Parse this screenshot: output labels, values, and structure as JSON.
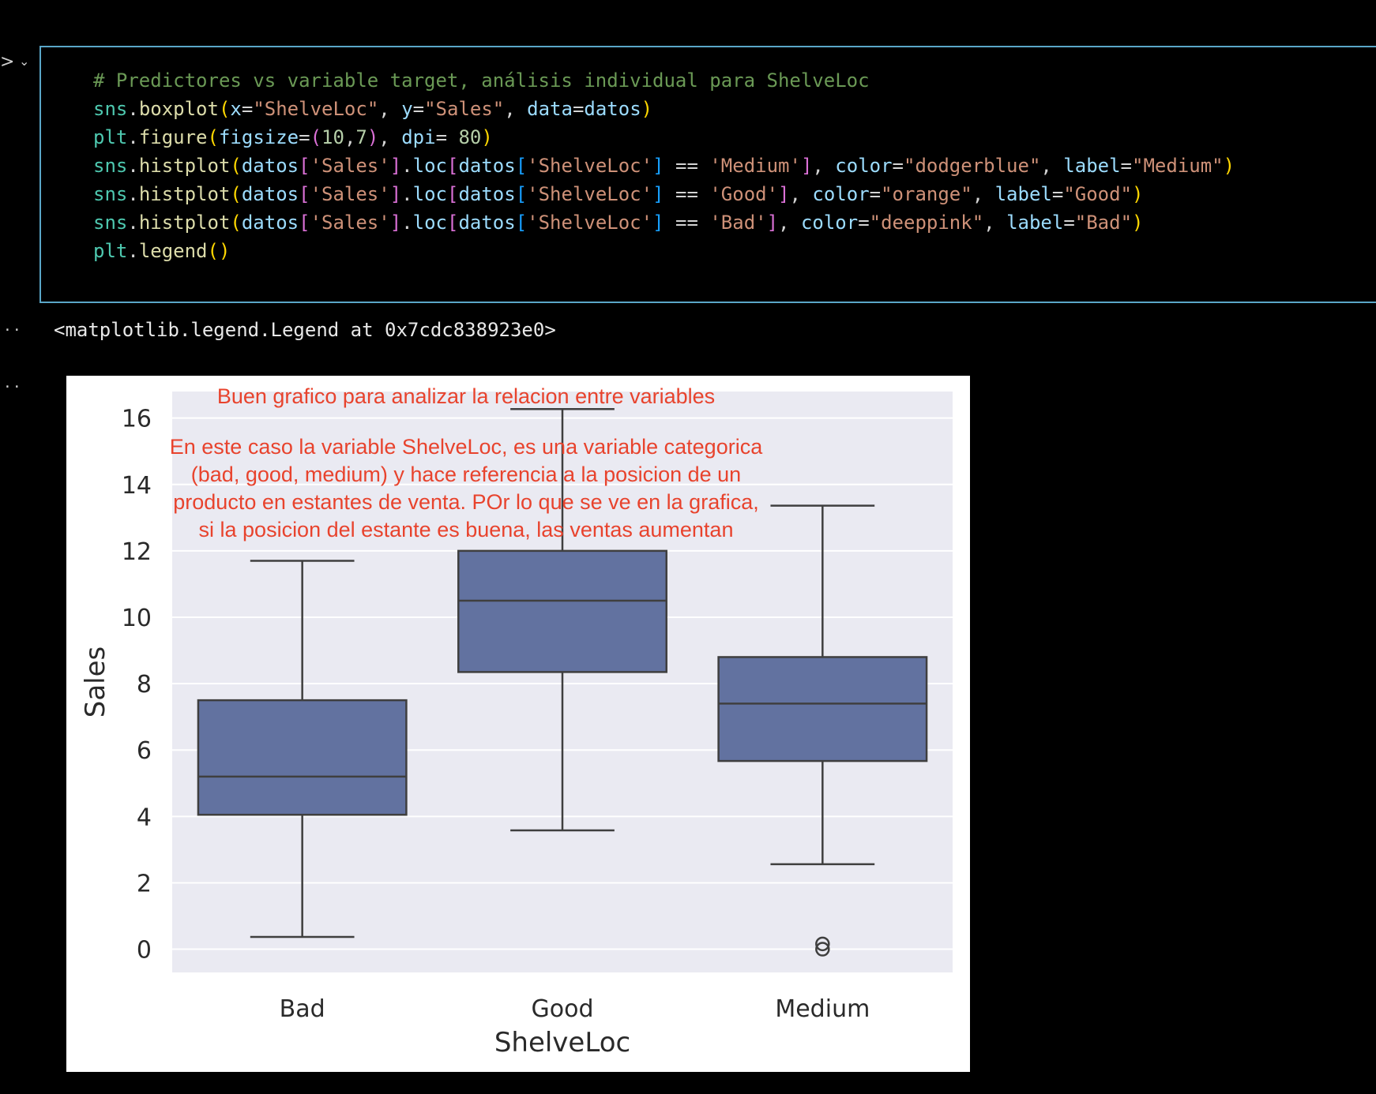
{
  "cell": {
    "lines": [
      [
        [
          "t-comment",
          "# Predictores vs variable target, análisis individual para ShelveLoc"
        ]
      ],
      [
        [
          "t-name",
          "sns"
        ],
        [
          "t-op",
          "."
        ],
        [
          "t-func",
          "boxplot"
        ],
        [
          "t-p1",
          "("
        ],
        [
          "t-ident",
          "x"
        ],
        [
          "t-op",
          "="
        ],
        [
          "t-str",
          "\"ShelveLoc\""
        ],
        [
          "t-op",
          ", "
        ],
        [
          "t-ident",
          "y"
        ],
        [
          "t-op",
          "="
        ],
        [
          "t-str",
          "\"Sales\""
        ],
        [
          "t-op",
          ", "
        ],
        [
          "t-ident",
          "data"
        ],
        [
          "t-op",
          "="
        ],
        [
          "t-ident",
          "datos"
        ],
        [
          "t-p1",
          ")"
        ]
      ],
      [
        [
          "t-name",
          "plt"
        ],
        [
          "t-op",
          "."
        ],
        [
          "t-func",
          "figure"
        ],
        [
          "t-p1",
          "("
        ],
        [
          "t-ident",
          "figsize"
        ],
        [
          "t-op",
          "="
        ],
        [
          "t-p2",
          "("
        ],
        [
          "t-num",
          "10"
        ],
        [
          "t-op",
          ","
        ],
        [
          "t-num",
          "7"
        ],
        [
          "t-p2",
          ")"
        ],
        [
          "t-op",
          ", "
        ],
        [
          "t-ident",
          "dpi"
        ],
        [
          "t-op",
          "= "
        ],
        [
          "t-num",
          "80"
        ],
        [
          "t-p1",
          ")"
        ]
      ],
      [
        [
          "t-name",
          "sns"
        ],
        [
          "t-op",
          "."
        ],
        [
          "t-func",
          "histplot"
        ],
        [
          "t-p1",
          "("
        ],
        [
          "t-ident",
          "datos"
        ],
        [
          "t-p2",
          "["
        ],
        [
          "t-str",
          "'Sales'"
        ],
        [
          "t-p2",
          "]"
        ],
        [
          "t-op",
          "."
        ],
        [
          "t-ident",
          "loc"
        ],
        [
          "t-p2",
          "["
        ],
        [
          "t-ident",
          "datos"
        ],
        [
          "t-p3",
          "["
        ],
        [
          "t-str",
          "'ShelveLoc'"
        ],
        [
          "t-p3",
          "]"
        ],
        [
          "t-op",
          " == "
        ],
        [
          "t-str",
          "'Medium'"
        ],
        [
          "t-p2",
          "]"
        ],
        [
          "t-op",
          ", "
        ],
        [
          "t-ident",
          "color"
        ],
        [
          "t-op",
          "="
        ],
        [
          "t-str",
          "\"dodgerblue\""
        ],
        [
          "t-op",
          ", "
        ],
        [
          "t-ident",
          "label"
        ],
        [
          "t-op",
          "="
        ],
        [
          "t-str",
          "\"Medium\""
        ],
        [
          "t-p1",
          ")"
        ]
      ],
      [
        [
          "t-name",
          "sns"
        ],
        [
          "t-op",
          "."
        ],
        [
          "t-func",
          "histplot"
        ],
        [
          "t-p1",
          "("
        ],
        [
          "t-ident",
          "datos"
        ],
        [
          "t-p2",
          "["
        ],
        [
          "t-str",
          "'Sales'"
        ],
        [
          "t-p2",
          "]"
        ],
        [
          "t-op",
          "."
        ],
        [
          "t-ident",
          "loc"
        ],
        [
          "t-p2",
          "["
        ],
        [
          "t-ident",
          "datos"
        ],
        [
          "t-p3",
          "["
        ],
        [
          "t-str",
          "'ShelveLoc'"
        ],
        [
          "t-p3",
          "]"
        ],
        [
          "t-op",
          " == "
        ],
        [
          "t-str",
          "'Good'"
        ],
        [
          "t-p2",
          "]"
        ],
        [
          "t-op",
          ", "
        ],
        [
          "t-ident",
          "color"
        ],
        [
          "t-op",
          "="
        ],
        [
          "t-str",
          "\"orange\""
        ],
        [
          "t-op",
          ", "
        ],
        [
          "t-ident",
          "label"
        ],
        [
          "t-op",
          "="
        ],
        [
          "t-str",
          "\"Good\""
        ],
        [
          "t-p1",
          ")"
        ]
      ],
      [
        [
          "t-name",
          "sns"
        ],
        [
          "t-op",
          "."
        ],
        [
          "t-func",
          "histplot"
        ],
        [
          "t-p1",
          "("
        ],
        [
          "t-ident",
          "datos"
        ],
        [
          "t-p2",
          "["
        ],
        [
          "t-str",
          "'Sales'"
        ],
        [
          "t-p2",
          "]"
        ],
        [
          "t-op",
          "."
        ],
        [
          "t-ident",
          "loc"
        ],
        [
          "t-p2",
          "["
        ],
        [
          "t-ident",
          "datos"
        ],
        [
          "t-p3",
          "["
        ],
        [
          "t-str",
          "'ShelveLoc'"
        ],
        [
          "t-p3",
          "]"
        ],
        [
          "t-op",
          " == "
        ],
        [
          "t-str",
          "'Bad'"
        ],
        [
          "t-p2",
          "]"
        ],
        [
          "t-op",
          ", "
        ],
        [
          "t-ident",
          "color"
        ],
        [
          "t-op",
          "="
        ],
        [
          "t-str",
          "\"deeppink\""
        ],
        [
          "t-op",
          ", "
        ],
        [
          "t-ident",
          "label"
        ],
        [
          "t-op",
          "="
        ],
        [
          "t-str",
          "\"Bad\""
        ],
        [
          "t-p1",
          ")"
        ]
      ],
      [
        [
          "t-name",
          "plt"
        ],
        [
          "t-op",
          "."
        ],
        [
          "t-func",
          "legend"
        ],
        [
          "t-p1",
          "()"
        ]
      ]
    ]
  },
  "output": {
    "dots_1": "··",
    "dots_2": "··",
    "repr": "<matplotlib.legend.Legend at 0x7cdc838923e0>"
  },
  "chart_data": {
    "type": "box",
    "categories": [
      "Bad",
      "Good",
      "Medium"
    ],
    "xlabel": "ShelveLoc",
    "ylabel": "Sales",
    "ylim": [
      -0.7,
      16.8
    ],
    "yticks": [
      0,
      2,
      4,
      6,
      8,
      10,
      12,
      14,
      16
    ],
    "grid": true,
    "box_color": "#6272a0",
    "background_color": "#eaeaf2",
    "boxes": [
      {
        "category": "Bad",
        "whisker_low": 0.37,
        "q1": 4.05,
        "median": 5.2,
        "q3": 7.5,
        "whisker_high": 11.7,
        "outliers": []
      },
      {
        "category": "Good",
        "whisker_low": 3.58,
        "q1": 8.35,
        "median": 10.5,
        "q3": 12.0,
        "whisker_high": 16.27,
        "outliers": []
      },
      {
        "category": "Medium",
        "whisker_low": 2.56,
        "q1": 5.67,
        "median": 7.4,
        "q3": 8.8,
        "whisker_high": 13.36,
        "outliers": [
          0.0,
          0.16
        ]
      }
    ],
    "annotations": {
      "color": "#e8432d",
      "title": "Buen grafico para analizar la relacion entre variables",
      "lines": [
        "En este caso la variable ShelveLoc, es una variable categorica",
        "(bad, good, medium) y hace referencia a la posicion de un",
        "producto en estantes de venta. POr lo que se ve en la grafica,",
        "si la posicion del estante es buena, las ventas aumentan"
      ]
    }
  }
}
